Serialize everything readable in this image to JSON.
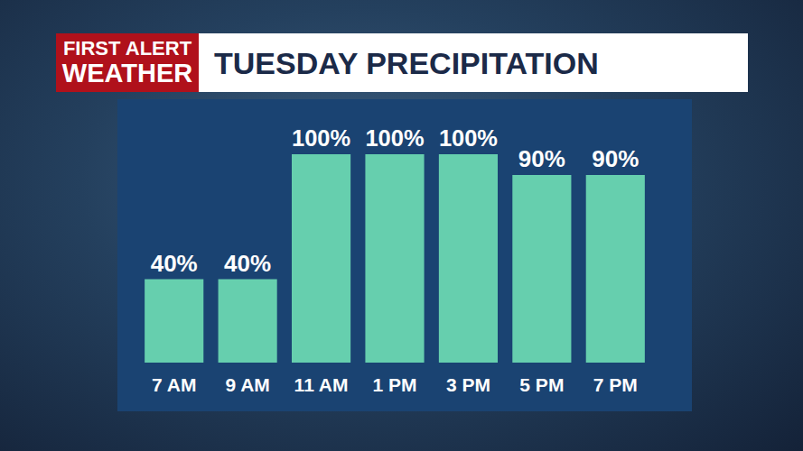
{
  "chart_data": {
    "type": "bar",
    "title": "TUESDAY PRECIPITATION",
    "annotations": [
      "FIRST ALERT",
      "WEATHER"
    ],
    "categories": [
      "7 AM",
      "9 AM",
      "11 AM",
      "1 PM",
      "3 PM",
      "5 PM",
      "7 PM"
    ],
    "values": [
      40,
      40,
      100,
      100,
      100,
      90,
      90
    ],
    "value_labels": [
      "40%",
      "40%",
      "100%",
      "100%",
      "100%",
      "90%",
      "90%"
    ],
    "color": "#66cfae",
    "ylim": [
      0,
      100
    ],
    "data_labels": true,
    "tick_labels": "x",
    "grid": false
  }
}
